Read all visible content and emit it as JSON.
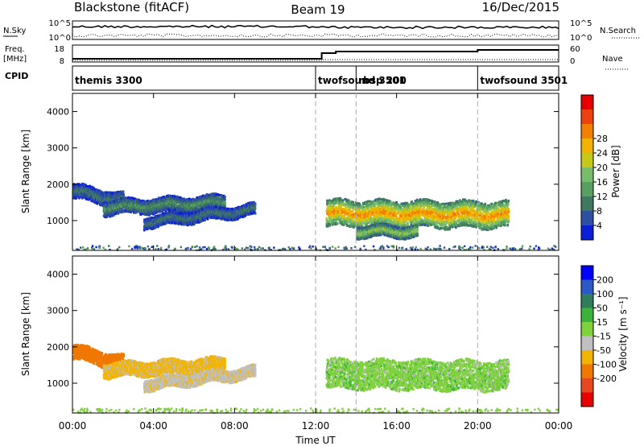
{
  "header": {
    "station": "Blackstone (fitACF)",
    "beam": "Beam 19",
    "date": "16/Dec/2015"
  },
  "noise_panel": {
    "left_label": "N.Sky",
    "right_label": "N.Search",
    "ticks": [
      "10^5",
      "10^0"
    ]
  },
  "freq_panel": {
    "left_label_1": "Freq.",
    "left_label_2": "[MHz]",
    "right_label": "Nave",
    "left_ticks": [
      "18",
      "8"
    ],
    "right_ticks": [
      "60",
      "0"
    ]
  },
  "cpid_panel": {
    "label": "CPID",
    "modes": [
      {
        "name": "themis 3300",
        "start_hour": 0
      },
      {
        "name": "twofsound 3501",
        "start_hour": 12
      },
      {
        "name": "rbsp 200",
        "start_hour": 14
      },
      {
        "name": "twofsound 3501",
        "start_hour": 20
      }
    ]
  },
  "colors": {
    "power_scale": [
      "#0a1fd6",
      "#2f4fa0",
      "#3f7a60",
      "#58a060",
      "#79bd6a",
      "#c8c818",
      "#f2b200",
      "#f37f00",
      "#ef4010",
      "#e80000"
    ],
    "velocity_scale": [
      "#0000ff",
      "#2b5ac8",
      "#2f7d5a",
      "#3cb43c",
      "#7fd23c",
      "#c0c0c0",
      "#f2b400",
      "#f07800",
      "#e84820",
      "#e80000"
    ]
  },
  "chart_data": [
    {
      "type": "heatmap",
      "name": "power",
      "ylabel": "Slant Range [km]",
      "xlabel": "",
      "xlim": [
        0,
        24
      ],
      "ylim": [
        180,
        4500
      ],
      "yticks": [
        1000,
        2000,
        3000,
        4000
      ],
      "colorbar": {
        "label": "Power [dB]",
        "ticks": [
          4,
          8,
          12,
          16,
          20,
          24,
          28
        ]
      },
      "echo_bands": [
        {
          "time_start": 0.0,
          "time_end": 2.5,
          "range_center_start": 1800,
          "range_center_end": 1550,
          "width_km": 250,
          "power_db": 8
        },
        {
          "time_start": 1.5,
          "time_end": 7.5,
          "range_center_start": 1350,
          "range_center_end": 1500,
          "width_km": 250,
          "power_db": 10
        },
        {
          "time_start": 3.5,
          "time_end": 9.0,
          "range_center_start": 950,
          "range_center_end": 1300,
          "width_km": 200,
          "power_db": 8
        },
        {
          "time_start": 12.5,
          "time_end": 21.5,
          "range_center_start": 1200,
          "range_center_end": 1150,
          "width_km": 450,
          "power_db": 24
        },
        {
          "time_start": 14.0,
          "time_end": 17.0,
          "range_center_start": 700,
          "range_center_end": 700,
          "width_km": 200,
          "power_db": 16
        }
      ]
    },
    {
      "type": "heatmap",
      "name": "velocity",
      "ylabel": "Slant Range [km]",
      "xlabel": "Time UT",
      "xlim": [
        0,
        24
      ],
      "ylim": [
        180,
        4500
      ],
      "yticks": [
        1000,
        2000,
        3000,
        4000
      ],
      "xticks": [
        "00:00",
        "04:00",
        "08:00",
        "12:00",
        "16:00",
        "20:00",
        "00:00"
      ],
      "colorbar": {
        "label": "Velocity [m s⁻¹]",
        "ticks": [
          200,
          100,
          50,
          15,
          -15,
          -50,
          -100,
          -200
        ]
      },
      "echo_bands": [
        {
          "time_start": 0.0,
          "time_end": 2.5,
          "range_center_start": 1850,
          "range_center_end": 1550,
          "width_km": 250,
          "velocity": -150
        },
        {
          "time_start": 1.5,
          "time_end": 7.5,
          "range_center_start": 1350,
          "range_center_end": 1500,
          "width_km": 250,
          "velocity": -60
        },
        {
          "time_start": 3.5,
          "time_end": 9.0,
          "range_center_start": 950,
          "range_center_end": 1300,
          "width_km": 200,
          "velocity": -40
        },
        {
          "time_start": 12.5,
          "time_end": 21.5,
          "range_center_start": 1250,
          "range_center_end": 1200,
          "width_km": 500,
          "velocity": 0
        }
      ]
    }
  ]
}
